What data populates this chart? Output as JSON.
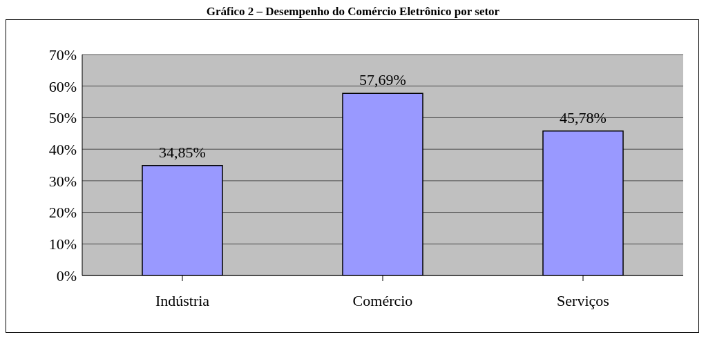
{
  "chart_data": {
    "type": "bar",
    "title": "Gráfico 2 – Desempenho do Comércio Eletrônico por setor",
    "categories": [
      "Indústria",
      "Comércio",
      "Serviços"
    ],
    "values": [
      34.85,
      57.69,
      45.78
    ],
    "value_labels": [
      "34,85%",
      "57,69%",
      "45,78%"
    ],
    "color": "#9999ff",
    "ylim": [
      0,
      70
    ],
    "yticks": [
      {
        "value": 0,
        "label": "0%"
      },
      {
        "value": 10,
        "label": "10%"
      },
      {
        "value": 20,
        "label": "20%"
      },
      {
        "value": 30,
        "label": "30%"
      },
      {
        "value": 40,
        "label": "40%"
      },
      {
        "value": 50,
        "label": "50%"
      },
      {
        "value": 60,
        "label": "60%"
      },
      {
        "value": 70,
        "label": "70%"
      }
    ],
    "grid": "y",
    "legend": false
  }
}
